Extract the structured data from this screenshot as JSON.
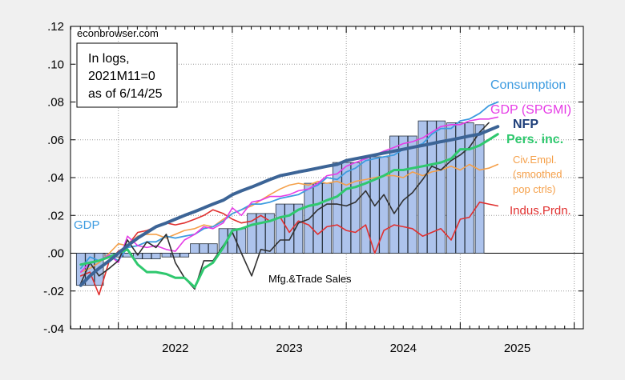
{
  "chart_data": {
    "type": "line",
    "watermark": "econbrowser.com",
    "note_lines": [
      "In logs,",
      "2021M11=0",
      "as of 6/14/25"
    ],
    "xlabel": "",
    "ylabel": "",
    "xlim": [
      2021.58,
      2026.08
    ],
    "ylim": [
      -0.04,
      0.12
    ],
    "y_ticks": [
      -0.04,
      -0.02,
      0.0,
      0.02,
      0.04,
      0.06,
      0.08,
      0.1,
      0.12
    ],
    "y_tick_labels": [
      "-.04",
      "-.02",
      ".00",
      ".02",
      ".04",
      ".06",
      ".08",
      ".10",
      ".12"
    ],
    "x_ticks": [
      2022.5,
      2023.5,
      2024.5,
      2025.5
    ],
    "x_tick_labels": [
      "2022",
      "2023",
      "2024",
      "2025"
    ],
    "grid": "dotted",
    "legend": "inline labels",
    "bars": {
      "name": "GDP",
      "color": "#adc3ec",
      "x": [
        2021.67,
        2021.75,
        2021.83,
        2021.92,
        2022.0,
        2022.08,
        2022.17,
        2022.25,
        2022.33,
        2022.42,
        2022.5,
        2022.58,
        2022.67,
        2022.75,
        2022.83,
        2022.92,
        2023.0,
        2023.08,
        2023.17,
        2023.25,
        2023.33,
        2023.42,
        2023.5,
        2023.58,
        2023.67,
        2023.75,
        2023.83,
        2023.92,
        2024.0,
        2024.08,
        2024.17,
        2024.25,
        2024.33,
        2024.42,
        2024.5,
        2024.58,
        2024.67,
        2024.75,
        2024.83,
        2024.92,
        2025.0,
        2025.08,
        2025.17
      ],
      "values": [
        -0.017,
        -0.017,
        -0.017,
        -0.002,
        -0.002,
        -0.002,
        -0.003,
        -0.003,
        -0.003,
        -0.002,
        -0.002,
        -0.002,
        0.005,
        0.005,
        0.005,
        0.013,
        0.013,
        0.013,
        0.021,
        0.021,
        0.021,
        0.026,
        0.026,
        0.026,
        0.037,
        0.037,
        0.037,
        0.048,
        0.048,
        0.048,
        0.051,
        0.051,
        0.051,
        0.062,
        0.062,
        0.062,
        0.07,
        0.07,
        0.07,
        0.069,
        0.069,
        0.069,
        0.068
      ]
    },
    "series": [
      {
        "name": "Consumption",
        "color": "#3d9be0",
        "width": 1.8,
        "x": [
          2021.67,
          2021.75,
          2021.83,
          2021.92,
          2022.0,
          2022.08,
          2022.17,
          2022.25,
          2022.33,
          2022.42,
          2022.5,
          2022.58,
          2022.67,
          2022.75,
          2022.83,
          2022.92,
          2023.0,
          2023.08,
          2023.17,
          2023.25,
          2023.33,
          2023.42,
          2023.5,
          2023.58,
          2023.67,
          2023.75,
          2023.83,
          2023.92,
          2024.0,
          2024.08,
          2024.17,
          2024.25,
          2024.33,
          2024.42,
          2024.5,
          2024.58,
          2024.67,
          2024.75,
          2024.83,
          2024.92,
          2025.0,
          2025.08,
          2025.17,
          2025.25,
          2025.33
        ],
        "values": [
          -0.008,
          -0.002,
          -0.004,
          -0.001,
          -0.004,
          0.003,
          0.004,
          0.006,
          0.006,
          0.009,
          0.008,
          0.009,
          0.01,
          0.013,
          0.014,
          0.017,
          0.021,
          0.023,
          0.026,
          0.026,
          0.027,
          0.029,
          0.03,
          0.031,
          0.034,
          0.036,
          0.04,
          0.039,
          0.043,
          0.045,
          0.049,
          0.05,
          0.051,
          0.052,
          0.055,
          0.056,
          0.058,
          0.063,
          0.066,
          0.066,
          0.07,
          0.071,
          0.074,
          0.078,
          0.08
        ]
      },
      {
        "name": "GDP (SPGMI)",
        "color": "#e63ce6",
        "width": 1.6,
        "x": [
          2021.67,
          2021.75,
          2021.83,
          2021.92,
          2022.0,
          2022.08,
          2022.17,
          2022.25,
          2022.33,
          2022.42,
          2022.5,
          2022.58,
          2022.67,
          2022.75,
          2022.83,
          2022.92,
          2023.0,
          2023.08,
          2023.17,
          2023.25,
          2023.33,
          2023.42,
          2023.5,
          2023.58,
          2023.67,
          2023.75,
          2023.83,
          2023.92,
          2024.0,
          2024.08,
          2024.17,
          2024.25,
          2024.33,
          2024.42,
          2024.5,
          2024.58,
          2024.67,
          2024.75,
          2024.83,
          2024.92,
          2025.0,
          2025.08,
          2025.17,
          2025.25,
          2025.33
        ],
        "values": [
          -0.01,
          -0.005,
          -0.004,
          -0.001,
          -0.005,
          0.009,
          0.004,
          0.003,
          0.004,
          0.002,
          0.001,
          0.007,
          0.01,
          0.014,
          0.013,
          0.016,
          0.024,
          0.02,
          0.027,
          0.028,
          0.03,
          0.03,
          0.031,
          0.033,
          0.034,
          0.037,
          0.041,
          0.042,
          0.046,
          0.048,
          0.05,
          0.052,
          0.054,
          0.056,
          0.058,
          0.059,
          0.061,
          0.064,
          0.067,
          0.068,
          0.068,
          0.07,
          0.071,
          0.071,
          0.072
        ]
      },
      {
        "name": "NFP",
        "color": "#3c6496",
        "width": 4.0,
        "x": [
          2021.67,
          2021.75,
          2021.83,
          2021.92,
          2022.0,
          2022.08,
          2022.17,
          2022.25,
          2022.33,
          2022.42,
          2022.5,
          2022.58,
          2022.67,
          2022.75,
          2022.83,
          2022.92,
          2023.0,
          2023.08,
          2023.17,
          2023.25,
          2023.33,
          2023.42,
          2023.5,
          2023.58,
          2023.67,
          2023.75,
          2023.83,
          2023.92,
          2024.0,
          2024.08,
          2024.17,
          2024.25,
          2024.33,
          2024.42,
          2024.5,
          2024.58,
          2024.67,
          2024.75,
          2024.83,
          2024.92,
          2025.0,
          2025.08,
          2025.17,
          2025.25,
          2025.33
        ],
        "values": [
          -0.017,
          -0.012,
          -0.008,
          -0.004,
          0.0,
          0.004,
          0.008,
          0.011,
          0.014,
          0.016,
          0.018,
          0.02,
          0.022,
          0.024,
          0.026,
          0.028,
          0.031,
          0.033,
          0.035,
          0.037,
          0.039,
          0.041,
          0.042,
          0.043,
          0.044,
          0.045,
          0.046,
          0.047,
          0.049,
          0.05,
          0.051,
          0.052,
          0.053,
          0.054,
          0.055,
          0.056,
          0.057,
          0.058,
          0.059,
          0.06,
          0.061,
          0.062,
          0.063,
          0.065,
          0.067
        ]
      },
      {
        "name": "Pers. inc.",
        "color": "#2fc86e",
        "width": 3.0,
        "x": [
          2021.67,
          2021.75,
          2021.83,
          2021.92,
          2022.0,
          2022.08,
          2022.17,
          2022.25,
          2022.33,
          2022.42,
          2022.5,
          2022.58,
          2022.67,
          2022.75,
          2022.83,
          2022.92,
          2023.0,
          2023.08,
          2023.17,
          2023.25,
          2023.33,
          2023.42,
          2023.5,
          2023.58,
          2023.67,
          2023.75,
          2023.83,
          2023.92,
          2024.0,
          2024.08,
          2024.17,
          2024.25,
          2024.33,
          2024.42,
          2024.5,
          2024.58,
          2024.67,
          2024.75,
          2024.83,
          2024.92,
          2025.0,
          2025.08,
          2025.17,
          2025.25,
          2025.33
        ],
        "values": [
          -0.006,
          -0.005,
          -0.004,
          -0.002,
          0.0,
          0.002,
          -0.006,
          -0.01,
          -0.01,
          -0.011,
          -0.013,
          -0.013,
          -0.018,
          -0.008,
          -0.005,
          0.003,
          0.012,
          0.013,
          0.015,
          0.016,
          0.017,
          0.019,
          0.02,
          0.023,
          0.025,
          0.026,
          0.028,
          0.03,
          0.034,
          0.035,
          0.037,
          0.039,
          0.041,
          0.044,
          0.044,
          0.045,
          0.046,
          0.047,
          0.048,
          0.05,
          0.055,
          0.055,
          0.057,
          0.06,
          0.063
        ]
      },
      {
        "name": "Civ.Empl. (smoothed pop ctrls)",
        "color": "#f5a04a",
        "width": 1.6,
        "x": [
          2021.67,
          2021.75,
          2021.83,
          2021.92,
          2022.0,
          2022.08,
          2022.17,
          2022.25,
          2022.33,
          2022.42,
          2022.5,
          2022.58,
          2022.67,
          2022.75,
          2022.83,
          2022.92,
          2023.0,
          2023.08,
          2023.17,
          2023.25,
          2023.33,
          2023.42,
          2023.5,
          2023.58,
          2023.67,
          2023.75,
          2023.83,
          2023.92,
          2024.0,
          2024.08,
          2024.17,
          2024.25,
          2024.33,
          2024.42,
          2024.5,
          2024.58,
          2024.67,
          2024.75,
          2024.83,
          2024.92,
          2025.0,
          2025.08,
          2025.17,
          2025.25,
          2025.33
        ],
        "values": [
          -0.01,
          -0.008,
          -0.005,
          0.0,
          0.005,
          0.004,
          0.009,
          0.01,
          0.01,
          0.008,
          0.01,
          0.012,
          0.013,
          0.015,
          0.014,
          0.018,
          0.021,
          0.023,
          0.025,
          0.028,
          0.031,
          0.034,
          0.036,
          0.037,
          0.036,
          0.038,
          0.037,
          0.038,
          0.036,
          0.038,
          0.039,
          0.04,
          0.041,
          0.041,
          0.04,
          0.043,
          0.041,
          0.043,
          0.044,
          0.046,
          0.044,
          0.047,
          0.044,
          0.045,
          0.047
        ]
      },
      {
        "name": "Indus.Prdn.",
        "color": "#e0302f",
        "width": 1.6,
        "x": [
          2021.67,
          2021.75,
          2021.83,
          2021.92,
          2022.0,
          2022.08,
          2022.17,
          2022.25,
          2022.33,
          2022.42,
          2022.5,
          2022.58,
          2022.67,
          2022.75,
          2022.83,
          2022.92,
          2023.0,
          2023.08,
          2023.17,
          2023.25,
          2023.33,
          2023.42,
          2023.5,
          2023.58,
          2023.67,
          2023.75,
          2023.83,
          2023.92,
          2024.0,
          2024.08,
          2024.17,
          2024.25,
          2024.33,
          2024.42,
          2024.5,
          2024.58,
          2024.67,
          2024.75,
          2024.83,
          2024.92,
          2025.0,
          2025.08,
          2025.17,
          2025.25,
          2025.33
        ],
        "values": [
          -0.012,
          -0.01,
          -0.022,
          -0.004,
          0.001,
          0.004,
          0.011,
          0.012,
          0.014,
          0.016,
          0.015,
          0.016,
          0.018,
          0.02,
          0.023,
          0.021,
          0.018,
          0.016,
          0.017,
          0.02,
          0.017,
          0.019,
          0.011,
          0.017,
          0.015,
          0.01,
          0.014,
          0.015,
          0.012,
          0.011,
          0.015,
          0.0,
          0.012,
          0.015,
          0.014,
          0.013,
          0.009,
          0.011,
          0.013,
          0.007,
          0.018,
          0.019,
          0.027,
          0.026,
          0.025
        ]
      },
      {
        "name": "Mfg.&Trade Sales",
        "color": "#303030",
        "width": 1.6,
        "x": [
          2021.67,
          2021.75,
          2021.83,
          2021.92,
          2022.0,
          2022.08,
          2022.17,
          2022.25,
          2022.33,
          2022.42,
          2022.5,
          2022.58,
          2022.67,
          2022.75,
          2022.83,
          2022.92,
          2023.0,
          2023.08,
          2023.17,
          2023.25,
          2023.33,
          2023.42,
          2023.5,
          2023.58,
          2023.67,
          2023.75,
          2023.83,
          2023.92,
          2024.0,
          2024.08,
          2024.17,
          2024.25,
          2024.33,
          2024.42,
          2024.5,
          2024.58,
          2024.67,
          2024.75,
          2024.83,
          2024.92,
          2025.0,
          2025.08,
          2025.17,
          2025.25
        ],
        "values": [
          -0.016,
          -0.005,
          -0.012,
          -0.008,
          -0.004,
          0.007,
          -0.001,
          0.006,
          0.003,
          0.01,
          -0.005,
          -0.013,
          -0.019,
          -0.004,
          -0.004,
          0.004,
          0.011,
          0.0,
          -0.012,
          0.002,
          0.001,
          0.007,
          0.007,
          0.016,
          0.018,
          0.023,
          0.026,
          0.026,
          0.025,
          0.027,
          0.033,
          0.025,
          0.031,
          0.021,
          0.028,
          0.032,
          0.039,
          0.046,
          0.044,
          0.049,
          0.052,
          0.056,
          0.064,
          0.069
        ]
      }
    ],
    "labels": [
      "Consumption",
      "GDP (SPGMI)",
      "NFP",
      "Pers. inc.",
      "Civ.Empl.",
      "(smoothed",
      "pop ctrls)",
      "Indus.Prdn.",
      "GDP",
      "Mfg.&Trade Sales"
    ]
  }
}
